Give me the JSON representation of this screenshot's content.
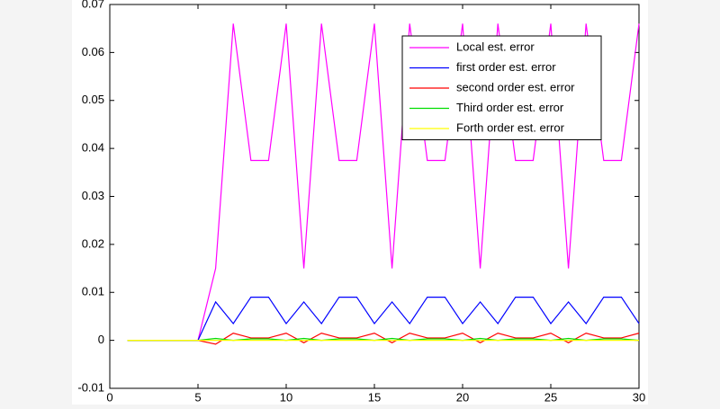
{
  "chart_data": {
    "type": "line",
    "x": [
      1,
      2,
      3,
      4,
      5,
      6,
      7,
      8,
      9,
      10,
      11,
      12,
      13,
      14,
      15,
      16,
      17,
      18,
      19,
      20,
      21,
      22,
      23,
      24,
      25,
      26,
      27,
      28,
      29,
      30
    ],
    "series": [
      {
        "name": "Local est. error",
        "color": "#ff00ff",
        "values": [
          0,
          0,
          0,
          0,
          0,
          0.015,
          0.066,
          0.0375,
          0.0375,
          0.066,
          0.015,
          0.066,
          0.0375,
          0.0375,
          0.066,
          0.015,
          0.066,
          0.0375,
          0.0375,
          0.066,
          0.015,
          0.066,
          0.0375,
          0.0375,
          0.066,
          0.015,
          0.066,
          0.0375,
          0.0375,
          0.066
        ]
      },
      {
        "name": "first order est. error",
        "color": "#0000ff",
        "values": [
          0,
          0,
          0,
          0,
          0,
          0.008,
          0.0035,
          0.009,
          0.009,
          0.0035,
          0.008,
          0.0035,
          0.009,
          0.009,
          0.0035,
          0.008,
          0.0035,
          0.009,
          0.009,
          0.0035,
          0.008,
          0.0035,
          0.009,
          0.009,
          0.0035,
          0.008,
          0.0035,
          0.009,
          0.009,
          0.0035
        ]
      },
      {
        "name": "second order est. error",
        "color": "#ff0000",
        "values": [
          0,
          0,
          0,
          0,
          0,
          -0.0008,
          0.0015,
          0.0005,
          0.0005,
          0.0015,
          -0.0005,
          0.0015,
          0.0005,
          0.0005,
          0.0015,
          -0.0005,
          0.0015,
          0.0005,
          0.0005,
          0.0015,
          -0.0005,
          0.0015,
          0.0005,
          0.0005,
          0.0015,
          -0.0005,
          0.0015,
          0.0005,
          0.0005,
          0.0015
        ]
      },
      {
        "name": "Third order est. error",
        "color": "#00dd00",
        "values": [
          0,
          0,
          0,
          0,
          0,
          0.0004,
          0,
          0.0003,
          0.0003,
          0,
          0.0004,
          0,
          0.0003,
          0.0003,
          0,
          0.0004,
          0,
          0.0003,
          0.0003,
          0,
          0.0004,
          0,
          0.0003,
          0.0003,
          0,
          0.0004,
          0,
          0.0003,
          0.0003,
          0
        ]
      },
      {
        "name": "Forth order est. error",
        "color": "#ffff00",
        "values": [
          0,
          0,
          0,
          0,
          0,
          0,
          0,
          0,
          0,
          0,
          0,
          0,
          0,
          0,
          0,
          0,
          0,
          0,
          0,
          0,
          0,
          0,
          0,
          0,
          0,
          0,
          0,
          0,
          0,
          0
        ]
      }
    ],
    "xlim": [
      0,
      30
    ],
    "xticks": [
      0,
      5,
      10,
      15,
      20,
      25,
      30
    ],
    "ylim": [
      -0.01,
      0.07
    ],
    "yticks": [
      -0.01,
      0,
      0.01,
      0.02,
      0.03,
      0.04,
      0.05,
      0.06,
      0.07
    ],
    "legend": "top-right"
  }
}
